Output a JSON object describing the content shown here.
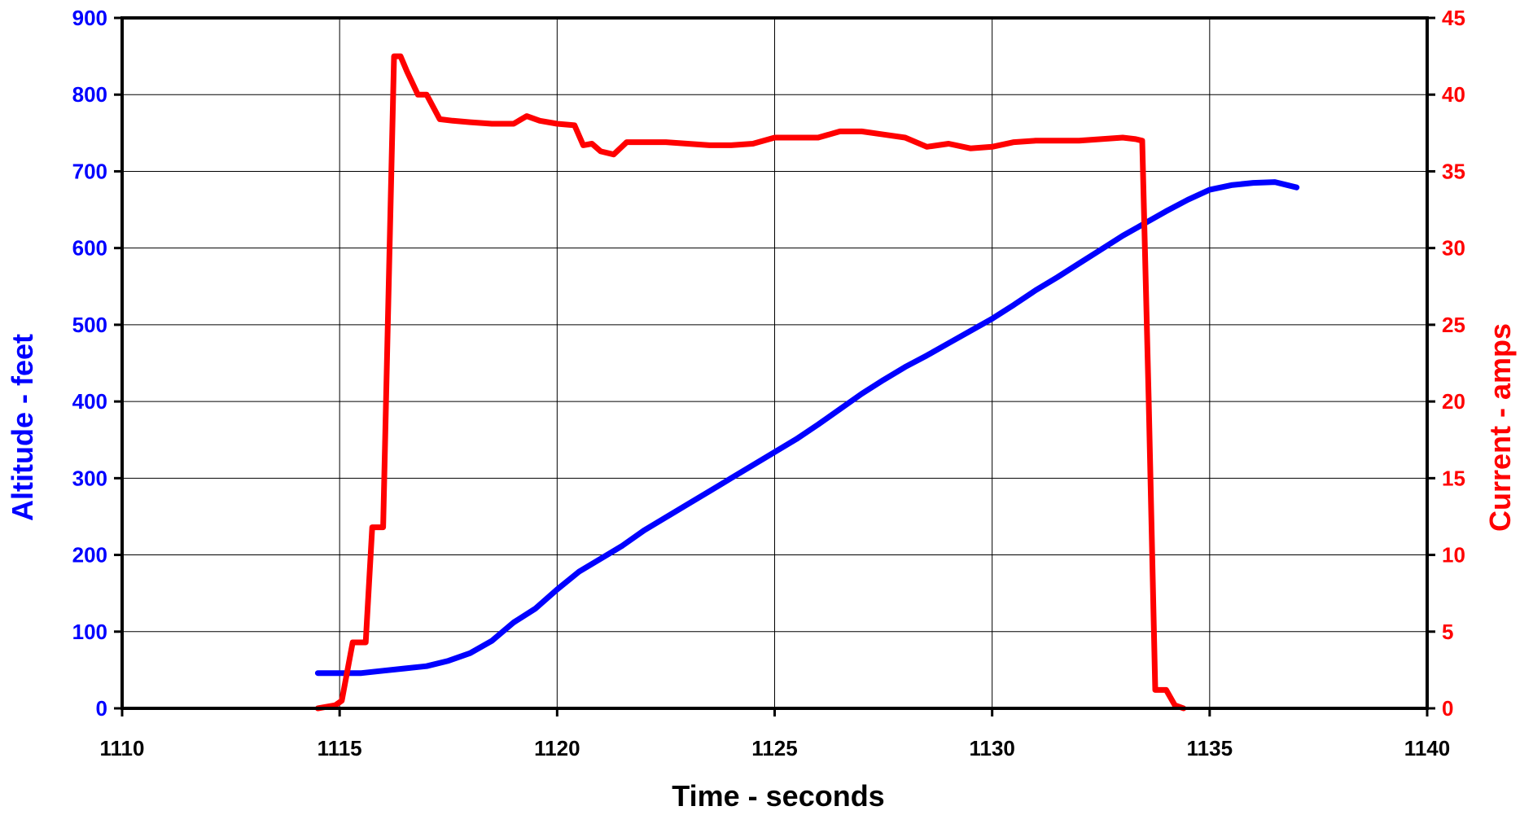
{
  "chart_data": {
    "type": "line",
    "title": "",
    "xlabel": "Time - seconds",
    "ylabel_left": "Altitude - feet",
    "ylabel_right": "Current - amps",
    "xlim": [
      1110,
      1140
    ],
    "ylim_left": [
      0,
      900
    ],
    "ylim_right": [
      0,
      45
    ],
    "x_ticks": [
      1110,
      1115,
      1120,
      1125,
      1130,
      1135,
      1140
    ],
    "y_ticks_left": [
      0,
      100,
      200,
      300,
      400,
      500,
      600,
      700,
      800,
      900
    ],
    "y_ticks_right": [
      0,
      5,
      10,
      15,
      20,
      25,
      30,
      35,
      40,
      45
    ],
    "grid": true,
    "colors": {
      "altitude": "#0000ff",
      "current": "#ff0000",
      "axes": "#000000",
      "grid": "#000000"
    },
    "series": [
      {
        "axis": "left",
        "color": "#0000ff",
        "x": [
          1114.5,
          1115.0,
          1115.5,
          1116.0,
          1116.5,
          1117.0,
          1117.5,
          1118.0,
          1118.5,
          1119.0,
          1119.5,
          1120.0,
          1120.5,
          1121.0,
          1121.5,
          1122.0,
          1122.5,
          1123.0,
          1123.5,
          1124.0,
          1124.5,
          1125.0,
          1125.5,
          1126.0,
          1126.5,
          1127.0,
          1127.5,
          1128.0,
          1128.5,
          1129.0,
          1129.5,
          1130.0,
          1130.5,
          1131.0,
          1131.5,
          1132.0,
          1132.5,
          1133.0,
          1133.5,
          1134.0,
          1134.5,
          1135.0,
          1135.5,
          1136.0,
          1136.5,
          1137.0
        ],
        "values": [
          46,
          46,
          46,
          49,
          52,
          55,
          62,
          72,
          88,
          112,
          130,
          155,
          178,
          195,
          212,
          232,
          249,
          266,
          283,
          300,
          317,
          334,
          351,
          370,
          390,
          410,
          428,
          445,
          460,
          476,
          492,
          508,
          526,
          545,
          562,
          580,
          598,
          616,
          632,
          648,
          663,
          676,
          682,
          685,
          686,
          679
        ]
      },
      {
        "axis": "right",
        "color": "#ff0000",
        "x": [
          1114.5,
          1114.9,
          1115.05,
          1115.3,
          1115.6,
          1115.75,
          1116.0,
          1116.1,
          1116.25,
          1116.4,
          1116.55,
          1116.8,
          1117.0,
          1117.3,
          1117.6,
          1118.0,
          1118.5,
          1119.0,
          1119.3,
          1119.6,
          1120.0,
          1120.4,
          1120.6,
          1120.8,
          1121.0,
          1121.3,
          1121.6,
          1122.0,
          1122.5,
          1123.0,
          1123.5,
          1124.0,
          1124.5,
          1125.0,
          1125.5,
          1126.0,
          1126.5,
          1127.0,
          1127.5,
          1128.0,
          1128.5,
          1129.0,
          1129.5,
          1130.0,
          1130.5,
          1131.0,
          1131.5,
          1132.0,
          1132.5,
          1133.0,
          1133.3,
          1133.45,
          1133.6,
          1133.75,
          1134.0,
          1134.2,
          1134.4
        ],
        "values": [
          0,
          0.2,
          0.5,
          4.3,
          4.3,
          11.8,
          11.8,
          24,
          42.5,
          42.5,
          41.5,
          40,
          40,
          38.4,
          38.3,
          38.2,
          38.1,
          38.1,
          38.6,
          38.3,
          38.1,
          38.0,
          36.7,
          36.8,
          36.3,
          36.1,
          36.9,
          36.9,
          36.9,
          36.8,
          36.7,
          36.7,
          36.8,
          37.2,
          37.2,
          37.2,
          37.6,
          37.6,
          37.4,
          37.2,
          36.6,
          36.8,
          36.5,
          36.6,
          36.9,
          37.0,
          37.0,
          37.0,
          37.1,
          37.2,
          37.1,
          37.0,
          20,
          1.2,
          1.2,
          0.2,
          0
        ]
      }
    ]
  }
}
